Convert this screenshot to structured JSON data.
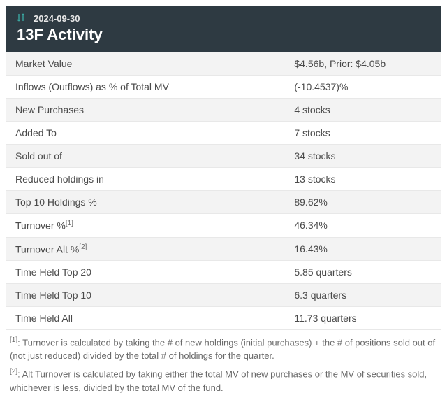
{
  "header": {
    "date": "2024-09-30",
    "title": "13F Activity",
    "header_bg": "#2e3a42",
    "icon_color": "#3aa6a0"
  },
  "table": {
    "row_bg_odd": "#f3f3f3",
    "row_bg_even": "#ffffff",
    "text_color": "#4a4a4a",
    "negative_color": "#d83a3a",
    "rows": [
      {
        "label": "Market Value",
        "value": "$4.56b, Prior: $4.05b"
      },
      {
        "label": "Inflows (Outflows) as % of Total MV",
        "value": "(-10.4537)%",
        "negative": true
      },
      {
        "label": "New Purchases",
        "value": "4 stocks"
      },
      {
        "label": "Added To",
        "value": "7 stocks"
      },
      {
        "label": "Sold out of",
        "value": "34 stocks"
      },
      {
        "label": "Reduced holdings in",
        "value": "13 stocks"
      },
      {
        "label": "Top 10 Holdings %",
        "value": "89.62%"
      },
      {
        "label": "Turnover %",
        "fn": "[1]",
        "value": "46.34%"
      },
      {
        "label": "Turnover Alt %",
        "fn": "[2]",
        "value": "16.43%"
      },
      {
        "label": "Time Held Top 20",
        "value": "5.85 quarters"
      },
      {
        "label": "Time Held Top 10",
        "value": "6.3 quarters"
      },
      {
        "label": "Time Held All",
        "value": "11.73 quarters"
      }
    ]
  },
  "footnotes": [
    {
      "marker": "[1]",
      "text": ": Turnover is calculated by taking the # of new holdings (initial purchases) + the # of positions sold out of (not just reduced) divided by the total # of holdings for the quarter."
    },
    {
      "marker": "[2]",
      "text": ": Alt Turnover is calculated by taking either the total MV of new purchases or the MV of securities sold, whichever is less, divided by the total MV of the fund."
    }
  ]
}
